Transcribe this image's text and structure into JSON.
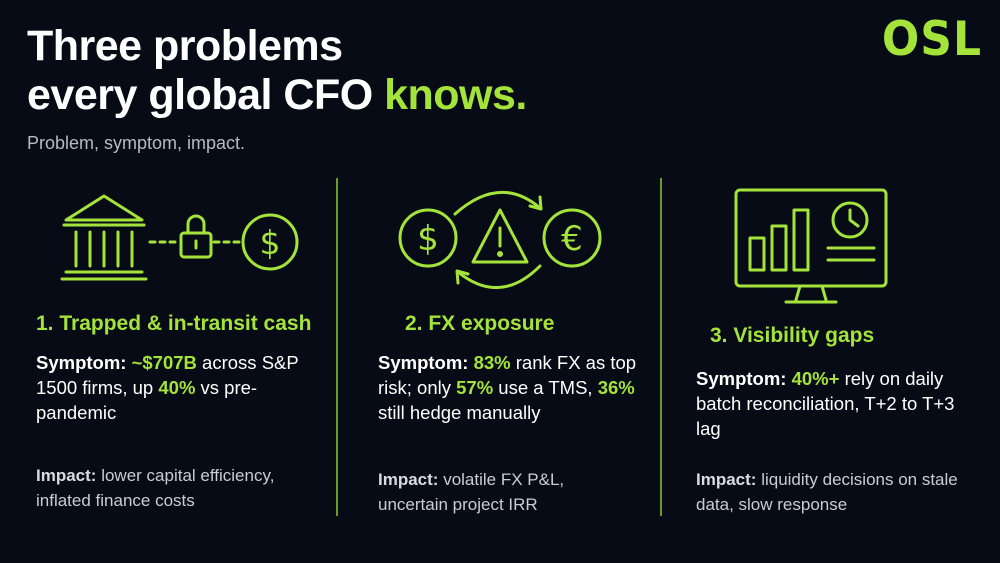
{
  "header": {
    "title_line1": "Three problems",
    "title_line2_prefix": "every global CFO ",
    "title_line2_accent": "knows.",
    "subtitle": "Problem, symptom, impact.",
    "logo": "OSL"
  },
  "colors": {
    "background": "#070b16",
    "accent": "#a4e43a",
    "divider": "#6d9a22"
  },
  "columns": [
    {
      "heading": "1. Trapped & in-transit cash",
      "icons": [
        "bank-icon",
        "lock-icon",
        "dollar-coin-icon"
      ],
      "symptom_label": "Symptom:",
      "symptom_part1": " ",
      "symptom_hl1": "~$707B",
      "symptom_part2": " across S&P 1500 firms, up ",
      "symptom_hl2": "40%",
      "symptom_part3": " vs pre-pandemic",
      "impact_label": "Impact:",
      "impact_text": " lower capital efficiency, inflated finance costs"
    },
    {
      "heading": "2. FX exposure",
      "icons": [
        "dollar-coin-icon",
        "warning-icon",
        "euro-coin-icon",
        "cycle-arrows-icon"
      ],
      "symptom_label": "Symptom:",
      "symptom_part1": " ",
      "symptom_hl1": "83%",
      "symptom_part2": " rank FX as top risk; only ",
      "symptom_hl2": "57%",
      "symptom_part3": " use a TMS, ",
      "symptom_hl3": "36%",
      "symptom_part4": " still hedge manually",
      "impact_label": "Impact:",
      "impact_text": " volatile FX P&L, uncertain project IRR"
    },
    {
      "heading": "3. Visibility gaps",
      "icons": [
        "monitor-chart-icon",
        "clock-icon"
      ],
      "symptom_label": "Symptom:",
      "symptom_part1": " ",
      "symptom_hl1": "40%+",
      "symptom_part2": " rely on daily batch reconciliation, T+2 to T+3 lag",
      "impact_label": "Impact:",
      "impact_text": " liquidity decisions on stale data, slow response"
    }
  ]
}
